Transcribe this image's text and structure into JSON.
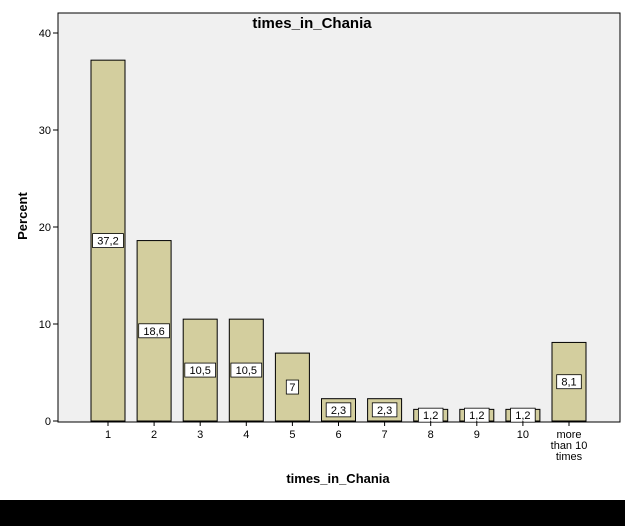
{
  "chart_data": {
    "type": "bar",
    "title": "times_in_Chania",
    "xlabel": "times_in_Chania",
    "ylabel": "Percent",
    "categories": [
      "1",
      "2",
      "3",
      "4",
      "5",
      "6",
      "7",
      "8",
      "9",
      "10",
      "more than 10 times"
    ],
    "values": [
      37.2,
      18.6,
      10.5,
      10.5,
      7,
      2.3,
      2.3,
      1.2,
      1.2,
      1.2,
      8.1
    ],
    "data_labels": [
      "37,2",
      "18,6",
      "10,5",
      "10,5",
      "7",
      "2,3",
      "2,3",
      "1,2",
      "1,2",
      "1,2",
      "8,1"
    ],
    "yticks": [
      0,
      10,
      20,
      30,
      40
    ],
    "ylim": [
      0,
      40
    ],
    "grid": false,
    "colors": {
      "bar_fill": "#d3ce9e",
      "bar_stroke": "#000000",
      "plot_background": "#f0f0f0",
      "page_background": "#ffffff"
    }
  }
}
